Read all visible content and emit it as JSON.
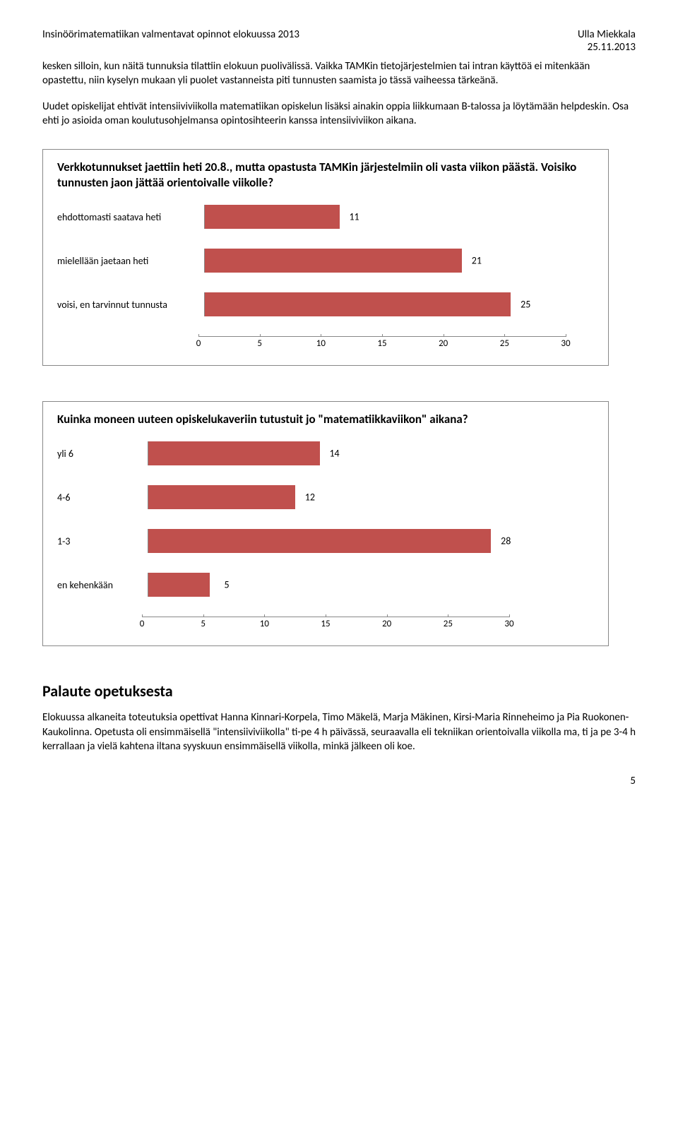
{
  "header": {
    "left": "Insinöörimatematiikan valmentavat opinnot elokuussa 2013",
    "right_name": "Ulla Miekkala",
    "right_date": "25.11.2013"
  },
  "para1": "kesken silloin, kun näitä tunnuksia tilattiin elokuun puolivälissä. Vaikka TAMKin tietojärjestelmien tai intran käyttöä ei mitenkään opastettu, niin kyselyn mukaan yli puolet vastanneista piti tunnusten saamista jo tässä vaiheessa tärkeänä.",
  "para2": "Uudet opiskelijat ehtivät intensiiviviikolla matematiikan opiskelun lisäksi ainakin oppia liikkumaan B-talossa ja löytämään helpdeskin. Osa ehti jo asioida oman koulutusohjelmansa opintosihteerin kanssa intensiiviviikon aikana.",
  "chart1": {
    "title": "Verkkotunnukset jaettiin heti 20.8., mutta opastusta TAMKin järjestelmiin oli vasta viikon päästä. Voisiko tunnusten jaon jättää orientoivalle viikolle?",
    "bar_color": "#c0504d",
    "max": 30,
    "ticks": [
      0,
      5,
      10,
      15,
      20,
      25,
      30
    ],
    "rows": [
      {
        "label": "ehdottomasti saatava heti",
        "value": 11
      },
      {
        "label": "mielellään jaetaan heti",
        "value": 21
      },
      {
        "label": "voisi, en tarvinnut tunnusta",
        "value": 25
      }
    ]
  },
  "chart2": {
    "title": "Kuinka moneen uuteen opiskelukaveriin tutustuit jo \"matematiikkaviikon\" aikana?",
    "bar_color": "#c0504d",
    "max": 30,
    "ticks": [
      0,
      5,
      10,
      15,
      20,
      25,
      30
    ],
    "rows": [
      {
        "label": "yli 6",
        "value": 14
      },
      {
        "label": "4-6",
        "value": 12
      },
      {
        "label": "1-3",
        "value": 28
      },
      {
        "label": "en kehenkään",
        "value": 5
      }
    ]
  },
  "section_heading": "Palaute opetuksesta",
  "para3": "Elokuussa alkaneita toteutuksia opettivat Hanna Kinnari-Korpela, Timo Mäkelä, Marja Mäkinen, Kirsi-Maria Rinneheimo ja Pia Ruokonen-Kaukolinna. Opetusta oli ensimmäisellä \"intensiiviviikolla\" ti-pe 4 h päivässä, seuraavalla eli tekniikan orientoivalla viikolla ma, ti ja pe 3-4 h kerrallaan ja vielä kahtena iltana syyskuun ensimmäisellä viikolla, minkä jälkeen oli koe.",
  "page_number": "5"
}
